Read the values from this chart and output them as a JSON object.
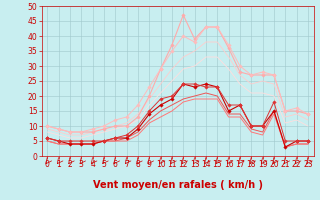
{
  "xlabel": "Vent moyen/en rafales ( km/h )",
  "bg_color": "#c8eef0",
  "grid_color": "#a0c8cc",
  "xlim": [
    -0.5,
    23.5
  ],
  "ylim": [
    0,
    50
  ],
  "yticks": [
    0,
    5,
    10,
    15,
    20,
    25,
    30,
    35,
    40,
    45,
    50
  ],
  "xticks": [
    0,
    1,
    2,
    3,
    4,
    5,
    6,
    7,
    8,
    9,
    10,
    11,
    12,
    13,
    14,
    15,
    16,
    17,
    18,
    19,
    20,
    21,
    22,
    23
  ],
  "lines": [
    {
      "x": [
        0,
        1,
        2,
        3,
        4,
        5,
        6,
        7,
        8,
        9,
        10,
        11,
        12,
        13,
        14,
        15,
        16,
        17,
        18,
        19,
        20,
        21,
        22,
        23
      ],
      "y": [
        6,
        5,
        4,
        4,
        4,
        5,
        6,
        6,
        9,
        14,
        17,
        19,
        24,
        23,
        24,
        23,
        15,
        17,
        10,
        10,
        15,
        3,
        5,
        5
      ],
      "color": "#cc0000",
      "lw": 0.8,
      "marker": "D",
      "ms": 1.8
    },
    {
      "x": [
        0,
        1,
        2,
        3,
        4,
        5,
        6,
        7,
        8,
        9,
        10,
        11,
        12,
        13,
        14,
        15,
        16,
        17,
        18,
        19,
        20,
        21,
        22,
        23
      ],
      "y": [
        6,
        5,
        5,
        5,
        5,
        5,
        6,
        7,
        10,
        15,
        19,
        20,
        24,
        24,
        23,
        23,
        17,
        17,
        10,
        10,
        18,
        5,
        5,
        5
      ],
      "color": "#dd3333",
      "lw": 0.7,
      "marker": "D",
      "ms": 1.8
    },
    {
      "x": [
        0,
        1,
        2,
        3,
        4,
        5,
        6,
        7,
        8,
        9,
        10,
        11,
        12,
        13,
        14,
        15,
        16,
        17,
        18,
        19,
        20,
        21,
        22,
        23
      ],
      "y": [
        5,
        4,
        4,
        4,
        4,
        5,
        5,
        6,
        8,
        12,
        15,
        17,
        19,
        20,
        21,
        20,
        14,
        14,
        9,
        8,
        15,
        3,
        4,
        4
      ],
      "color": "#ee5555",
      "lw": 0.7,
      "marker": null,
      "ms": 0
    },
    {
      "x": [
        0,
        1,
        2,
        3,
        4,
        5,
        6,
        7,
        8,
        9,
        10,
        11,
        12,
        13,
        14,
        15,
        16,
        17,
        18,
        19,
        20,
        21,
        22,
        23
      ],
      "y": [
        5,
        4,
        4,
        4,
        4,
        5,
        5,
        5,
        7,
        11,
        13,
        15,
        18,
        19,
        19,
        19,
        13,
        13,
        8,
        7,
        14,
        3,
        4,
        4
      ],
      "color": "#ff7777",
      "lw": 0.7,
      "marker": null,
      "ms": 0
    },
    {
      "x": [
        0,
        1,
        2,
        3,
        4,
        5,
        6,
        7,
        8,
        9,
        10,
        11,
        12,
        13,
        14,
        15,
        16,
        17,
        18,
        19,
        20,
        21,
        22,
        23
      ],
      "y": [
        10,
        9,
        8,
        8,
        8,
        9,
        10,
        10,
        13,
        20,
        29,
        37,
        47,
        39,
        43,
        43,
        36,
        28,
        27,
        27,
        27,
        15,
        15,
        14
      ],
      "color": "#ffaaaa",
      "lw": 0.8,
      "marker": "D",
      "ms": 1.8
    },
    {
      "x": [
        0,
        1,
        2,
        3,
        4,
        5,
        6,
        7,
        8,
        9,
        10,
        11,
        12,
        13,
        14,
        15,
        16,
        17,
        18,
        19,
        20,
        21,
        22,
        23
      ],
      "y": [
        10,
        9,
        8,
        8,
        9,
        10,
        12,
        13,
        17,
        23,
        29,
        35,
        40,
        38,
        43,
        43,
        37,
        30,
        27,
        28,
        27,
        15,
        16,
        14
      ],
      "color": "#ffbbbb",
      "lw": 0.7,
      "marker": "D",
      "ms": 1.8
    },
    {
      "x": [
        0,
        1,
        2,
        3,
        4,
        5,
        6,
        7,
        8,
        9,
        10,
        11,
        12,
        13,
        14,
        15,
        16,
        17,
        18,
        19,
        20,
        21,
        22,
        23
      ],
      "y": [
        9,
        8,
        7,
        7,
        8,
        9,
        10,
        11,
        14,
        19,
        24,
        29,
        33,
        35,
        38,
        38,
        33,
        27,
        24,
        25,
        24,
        13,
        14,
        12
      ],
      "color": "#ffcccc",
      "lw": 0.6,
      "marker": null,
      "ms": 0
    },
    {
      "x": [
        0,
        1,
        2,
        3,
        4,
        5,
        6,
        7,
        8,
        9,
        10,
        11,
        12,
        13,
        14,
        15,
        16,
        17,
        18,
        19,
        20,
        21,
        22,
        23
      ],
      "y": [
        8,
        7,
        6,
        6,
        7,
        8,
        9,
        10,
        12,
        17,
        21,
        25,
        29,
        30,
        33,
        33,
        29,
        24,
        21,
        21,
        20,
        11,
        12,
        10
      ],
      "color": "#ffdddd",
      "lw": 0.6,
      "marker": null,
      "ms": 0
    }
  ],
  "arrow_color": "#cc0000",
  "xlabel_color": "#cc0000",
  "xlabel_fontsize": 7,
  "tick_color": "#cc0000",
  "tick_fontsize": 5.5
}
